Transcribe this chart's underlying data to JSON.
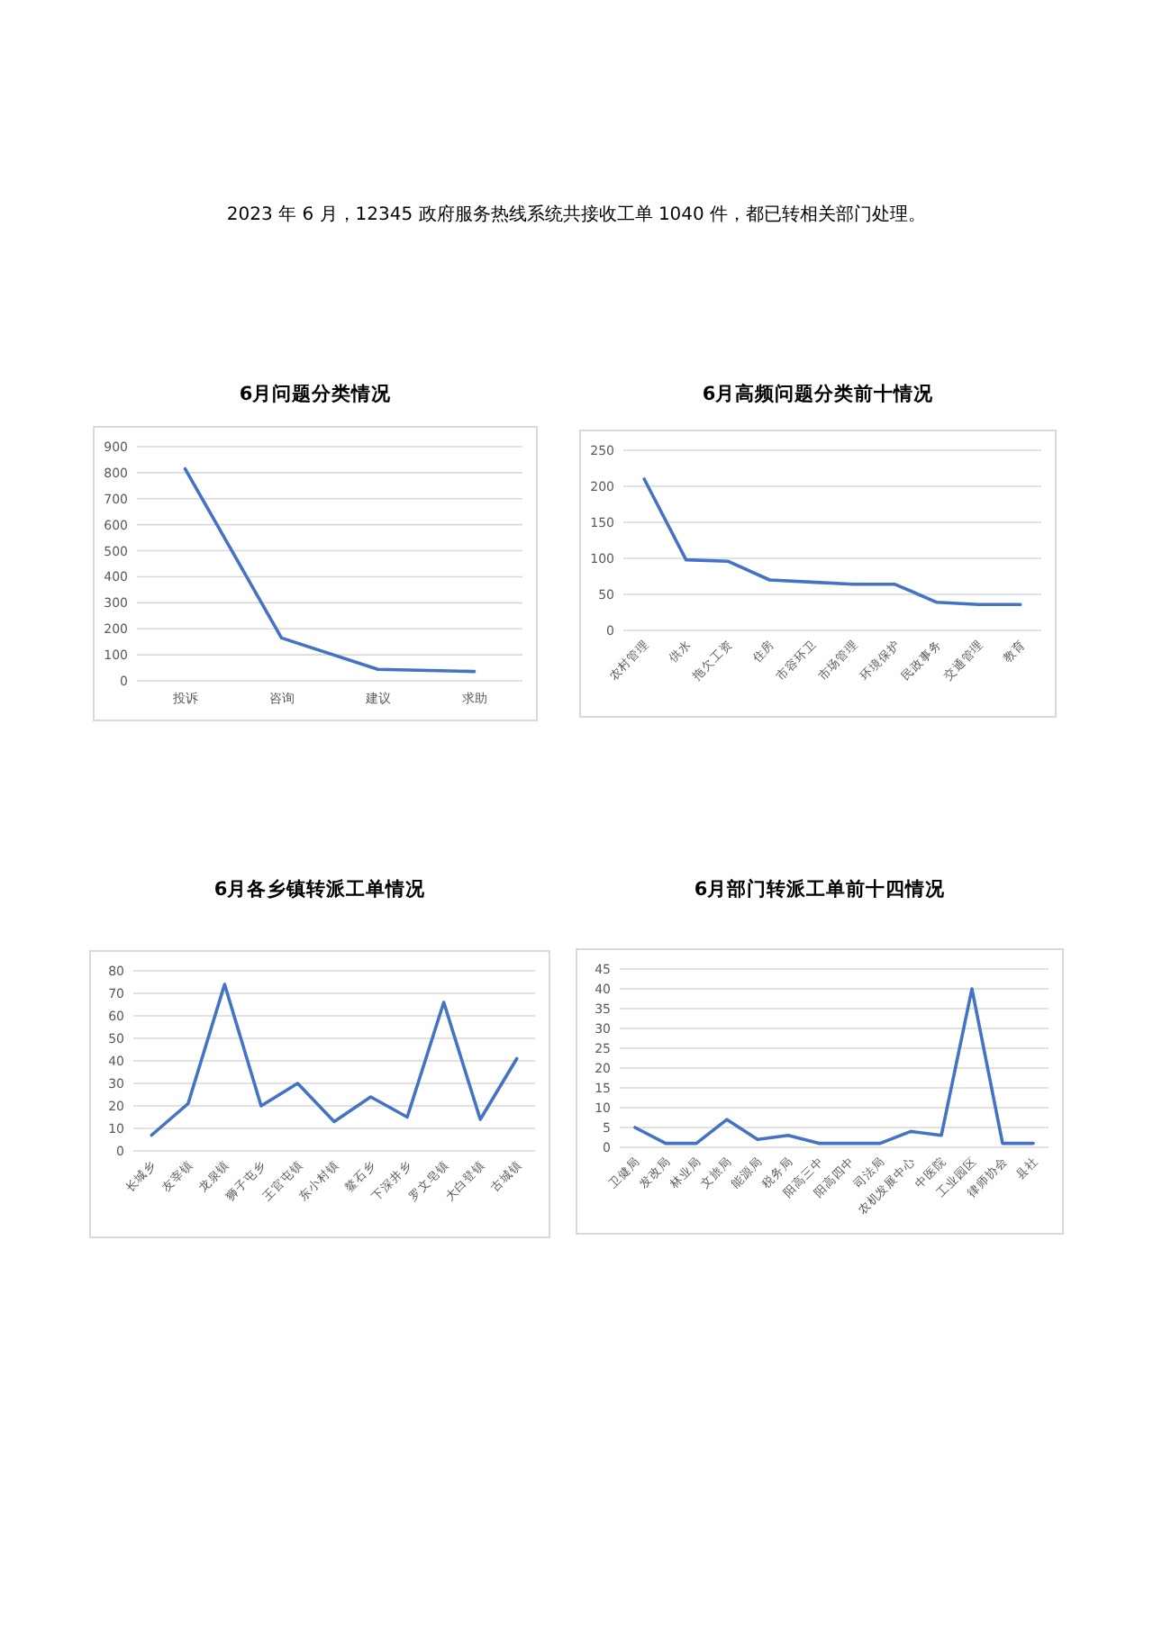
{
  "chart_data": [
    {
      "type": "line",
      "title": "6月问题分类情况",
      "annotations": [
        "2023 年 6 月，12345 政府服务热线系统共接收工单 1040 件，都已转相关部门处理。"
      ],
      "categories": [
        "投诉",
        "咨询",
        "建议",
        "求助"
      ],
      "values": [
        815,
        165,
        44,
        36
      ],
      "color": "#4472c4",
      "ylim": [
        0,
        900
      ],
      "yticks": [
        0,
        100,
        200,
        300,
        400,
        500,
        600,
        700,
        800,
        900
      ],
      "grid": "y"
    },
    {
      "type": "line",
      "title": "6月高频问题分类前十情况",
      "categories": [
        "农村管理",
        "供水",
        "拖欠工资",
        "住房",
        "市容环卫",
        "市场管理",
        "环境保护",
        "民政事务",
        "交通管理",
        "教育"
      ],
      "values": [
        210,
        98,
        96,
        70,
        67,
        64,
        64,
        39,
        36,
        36
      ],
      "color": "#4472c4",
      "ylim": [
        0,
        250
      ],
      "yticks": [
        0,
        50,
        100,
        150,
        200,
        250
      ],
      "grid": "y"
    },
    {
      "type": "line",
      "title": "6月各乡镇转派工单情况",
      "categories": [
        "长城乡",
        "友宰镇",
        "龙泉镇",
        "狮子屯乡",
        "王官屯镇",
        "东小村镇",
        "鳌石乡",
        "下深井乡",
        "罗文皂镇",
        "大白登镇",
        "古城镇"
      ],
      "values": [
        7,
        21,
        74,
        20,
        30,
        13,
        24,
        15,
        66,
        14,
        41
      ],
      "color": "#4472c4",
      "ylim": [
        0,
        80
      ],
      "yticks": [
        0,
        10,
        20,
        30,
        40,
        50,
        60,
        70,
        80
      ],
      "grid": "y"
    },
    {
      "type": "line",
      "title": "6月部门转派工单前十四情况",
      "categories": [
        "卫健局",
        "发改局",
        "林业局",
        "文旅局",
        "能源局",
        "税务局",
        "阳高三中",
        "阳高四中",
        "司法局",
        "农机发展中心",
        "中医院",
        "工业园区",
        "律师协会",
        "县社"
      ],
      "values": [
        5,
        1,
        1,
        7,
        2,
        3,
        1,
        1,
        1,
        4,
        3,
        40,
        1,
        1
      ],
      "color": "#4472c4",
      "ylim": [
        0,
        45
      ],
      "yticks": [
        0,
        5,
        10,
        15,
        20,
        25,
        30,
        35,
        40,
        45
      ],
      "grid": "y"
    }
  ]
}
